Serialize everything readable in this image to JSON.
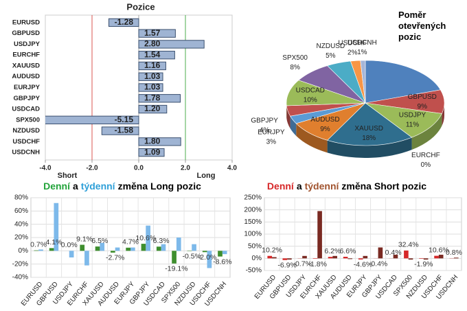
{
  "chart_data": [
    {
      "type": "hbar",
      "title": "Pozice",
      "categories": [
        "EURUSD",
        "GBPUSD",
        "USDJPY",
        "EURCHF",
        "XAUUSD",
        "AUDUSD",
        "EURJPY",
        "GBPJPY",
        "USDCAD",
        "SPX500",
        "NZDUSD",
        "USDCHF",
        "USDCNH"
      ],
      "values": [
        -1.28,
        1.57,
        2.8,
        1.54,
        1.16,
        1.03,
        1.03,
        1.78,
        1.2,
        -5.15,
        -1.58,
        1.8,
        1.09
      ],
      "value_labels": [
        "-1.28",
        "1.57",
        "2.80",
        "1.54",
        "1.16",
        "1.03",
        "1.03",
        "1.78",
        "1.20",
        "-5.15",
        "-1.58",
        "1.80",
        "1.09"
      ],
      "color": "#9fb4d3",
      "stroke": "#3a4f6e",
      "xlim": [
        -4,
        4
      ],
      "xticks": [
        {
          "value": -4,
          "label": "-4.0"
        },
        {
          "value": -2,
          "label": "-2.0"
        },
        {
          "value": 0,
          "label": "0.0"
        },
        {
          "value": 2,
          "label": "2.0"
        },
        {
          "value": 4,
          "label": "4.0"
        }
      ],
      "ref_lines": [
        {
          "value": -2,
          "color": "#d9534f",
          "label": "Short"
        },
        {
          "value": 2,
          "color": "#4cae4c",
          "label": "Long"
        }
      ]
    },
    {
      "type": "pie",
      "title": "Poměr otevřených pozic",
      "categories": [
        null,
        "GBPUSD",
        "USDJPY",
        "EURCHF",
        "XAUUSD",
        "AUDUSD",
        "EURJPY",
        "GBPJPY",
        "USDCAD",
        "SPX500",
        "NZDUSD",
        "USDCHF",
        "USDCNH"
      ],
      "values": [
        20,
        9,
        11,
        0,
        18,
        9,
        3,
        4,
        10,
        8,
        5,
        2,
        1
      ],
      "value_labels": [
        null,
        "9%",
        "11%",
        "0%",
        "18%",
        "9%",
        "3%",
        "4%",
        "10%",
        "8%",
        "5%",
        "2%",
        "1%"
      ],
      "colors": [
        "#4f81bd",
        "#c0504d",
        "#9bbb59",
        "#8064a2",
        "#2f6e8e",
        "#e07f2e",
        "#5b9bd5",
        "#c0504d",
        "#9bbb59",
        "#8064a2",
        "#4bacc6",
        "#f79646",
        "#a5b6d8"
      ]
    },
    {
      "type": "bar",
      "title_parts": [
        "Denní",
        "a",
        "týdenní",
        "změna Long pozic"
      ],
      "title_colors": [
        "#22a33a",
        "#000000",
        "#2e9fd8",
        "#000000"
      ],
      "categories": [
        "EURUSD",
        "GBPUSD",
        "USDJPY",
        "EURCHF",
        "XAUUSD",
        "AUDUSD",
        "EURJPY",
        "GBPJPY",
        "USDCAD",
        "SPX500",
        "NZDUSD",
        "USDCHF",
        "USDCNH"
      ],
      "series": [
        {
          "color": "#3e8e2e",
          "values": [
            0.7,
            4.1,
            0.0,
            9.1,
            6.5,
            -2.7,
            4.7,
            10.6,
            6.3,
            -19.1,
            -0.5,
            -2.0,
            -8.6
          ],
          "value_labels": [
            "0.7%",
            "4.1%",
            "0.0%",
            "9.1%",
            "6.5%",
            "-2.7%",
            "4.7%",
            "10.6%",
            "6.3%",
            "-19.1%",
            "-0.5%",
            "-2.0%",
            "-8.6%"
          ]
        },
        {
          "color": "#7db9ea",
          "values": [
            2,
            72,
            -10,
            -22,
            12,
            5,
            5,
            38,
            10,
            20,
            10,
            -26,
            -5
          ]
        }
      ],
      "ylim": [
        -40,
        80
      ],
      "yticks": [
        {
          "value": -40,
          "label": "-40%"
        },
        {
          "value": -20,
          "label": "-20%"
        },
        {
          "value": 0,
          "label": "0%"
        },
        {
          "value": 20,
          "label": "20%"
        },
        {
          "value": 40,
          "label": "40%"
        },
        {
          "value": 60,
          "label": "60%"
        },
        {
          "value": 80,
          "label": "80%"
        }
      ],
      "grid": true
    },
    {
      "type": "bar",
      "title_parts": [
        "Denní",
        "a",
        "týdenní",
        "změna Short pozic"
      ],
      "title_colors": [
        "#d62728",
        "#000000",
        "#a0522d",
        "#000000"
      ],
      "categories": [
        "EURUSD",
        "GBPUSD",
        "USDJPY",
        "EURCHF",
        "XAUUSD",
        "AUDUSD",
        "EURJPY",
        "GBPJPY",
        "USDCAD",
        "SPX500",
        "NZDUSD",
        "USDCHF",
        "USDCNH"
      ],
      "series": [
        {
          "color": "#d62728",
          "values": [
            10.2,
            -6.9,
            -0.7,
            -1.8,
            6.2,
            6.6,
            -4.6,
            -0.4,
            0.4,
            32.4,
            -1.9,
            10.6,
            0.8
          ],
          "value_labels": [
            "10.2%",
            "-6.9%",
            "-0.7%",
            "-1.8%",
            "6.2%",
            "6.6%",
            "-4.6%",
            "-0.4%",
            "0.4%",
            "32.4%",
            "-1.9%",
            "10.6%",
            "0.8%"
          ]
        },
        {
          "color": "#7a2a22",
          "values": [
            5,
            -5,
            10,
            195,
            10,
            -3,
            10,
            45,
            15,
            -5,
            -5,
            15,
            3
          ]
        }
      ],
      "ylim": [
        -50,
        250
      ],
      "yticks": [
        {
          "value": -50,
          "label": "-50%"
        },
        {
          "value": 0,
          "label": "0%"
        },
        {
          "value": 50,
          "label": "50%"
        },
        {
          "value": 100,
          "label": "100%"
        },
        {
          "value": 150,
          "label": "150%"
        },
        {
          "value": 200,
          "label": "200%"
        },
        {
          "value": 250,
          "label": "250%"
        }
      ],
      "grid": true
    }
  ]
}
